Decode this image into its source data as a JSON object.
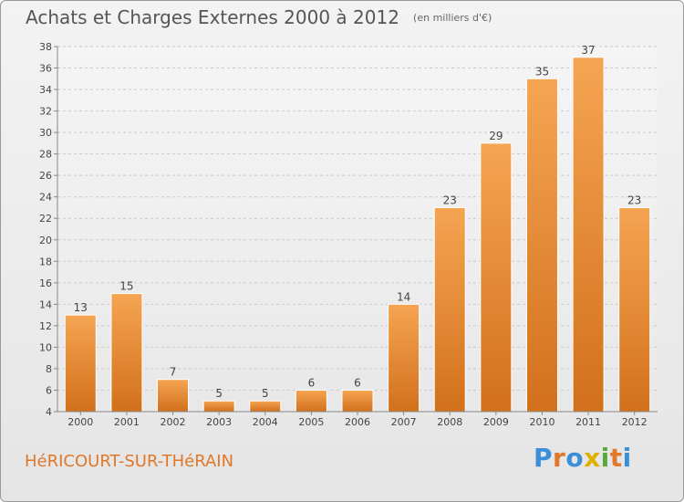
{
  "chart_data": {
    "type": "bar",
    "title": "Achats et Charges Externes 2000 à 2012",
    "subtitle": "(en milliers d'€)",
    "categories": [
      "2000",
      "2001",
      "2002",
      "2003",
      "2004",
      "2005",
      "2006",
      "2007",
      "2008",
      "2009",
      "2010",
      "2011",
      "2012"
    ],
    "values": [
      13,
      15,
      7,
      5,
      5,
      6,
      6,
      14,
      23,
      29,
      35,
      37,
      23
    ],
    "ylim": [
      4,
      38
    ],
    "yticks": [
      4,
      6,
      8,
      10,
      12,
      14,
      16,
      18,
      20,
      22,
      24,
      26,
      28,
      30,
      32,
      34,
      36,
      38
    ],
    "grid": true,
    "bar_color": "#f09a45",
    "bar_color_dark": "#d7721d"
  },
  "footer": {
    "commune": "HéRICOURT-SUR-THéRAIN",
    "brand": [
      "P",
      "r",
      "o",
      "x",
      "i",
      "t",
      "i"
    ],
    "brand_colors": [
      "#3a8fd6",
      "#e0782a",
      "#3a8fd6",
      "#e0b000",
      "#5aa83a",
      "#e0782a",
      "#3a8fd6"
    ]
  }
}
